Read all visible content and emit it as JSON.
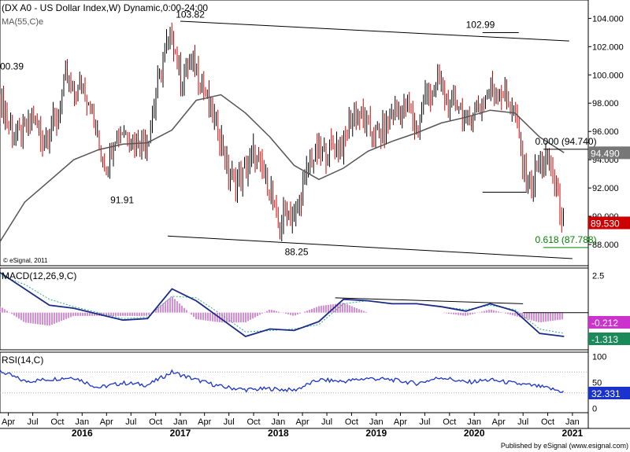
{
  "chart_data": {
    "type": "line",
    "title": "(DX A0 - US Dollar Index,W) Dynamic,0:00-24:00",
    "copyright": "© eSignal, 2011",
    "footer": "Published by eSignal (www.esignal.com)",
    "x_ticks_top": [
      "Apr",
      "Jul",
      "Oct",
      "Jan",
      "Apr",
      "Jul",
      "Oct",
      "Jan",
      "Apr",
      "Jul",
      "Oct",
      "Jan",
      "Apr",
      "Jul",
      "Oct",
      "Jan",
      "Apr",
      "Jul",
      "Oct",
      "Jan",
      "Apr",
      "Jul",
      "Oct",
      "Jan"
    ],
    "x_years": [
      "2016",
      "2017",
      "2018",
      "2019",
      "2020",
      "2021"
    ],
    "panels": [
      {
        "name": "price",
        "ylim": [
          86.5,
          105.3
        ],
        "yticks": [
          88,
          90,
          92,
          94,
          96,
          98,
          100,
          102,
          104
        ],
        "ytick_labels": [
          "88.000",
          "90.000",
          "92.000",
          "94.000",
          "96.000",
          "98.000",
          "100.000",
          "102.000",
          "104.000"
        ],
        "current_value": "89.530",
        "ma_value": "94.490",
        "series": [
          {
            "name": "DX A0",
            "style": "ohlc",
            "points": [
              [
                "2015-03-01",
                98.5
              ],
              [
                "2015-04-01",
                96.5
              ],
              [
                "2015-05-01",
                95.6
              ],
              [
                "2015-06-01",
                95.8
              ],
              [
                "2015-07-01",
                97.3
              ],
              [
                "2015-08-01",
                95.5
              ],
              [
                "2015-09-01",
                96.2
              ],
              [
                "2015-10-01",
                96.8
              ],
              [
                "2015-11-01",
                99.8
              ],
              [
                "2015-12-01",
                98.6
              ],
              [
                "2016-01-01",
                99.2
              ],
              [
                "2016-02-01",
                97.9
              ],
              [
                "2016-03-01",
                95.2
              ],
              [
                "2016-04-01",
                93.4
              ],
              [
                "2016-05-01",
                95.8
              ],
              [
                "2016-06-01",
                96.1
              ],
              [
                "2016-07-01",
                95.6
              ],
              [
                "2016-08-01",
                95.4
              ],
              [
                "2016-09-01",
                95.4
              ],
              [
                "2016-10-01",
                98.4
              ],
              [
                "2016-11-01",
                101.5
              ],
              [
                "2016-12-01",
                102.9
              ],
              [
                "2017-01-01",
                99.5
              ],
              [
                "2017-02-01",
                101.0
              ],
              [
                "2017-03-01",
                100.3
              ],
              [
                "2017-04-01",
                99.0
              ],
              [
                "2017-05-01",
                97.0
              ],
              [
                "2017-06-01",
                95.6
              ],
              [
                "2017-07-01",
                92.8
              ],
              [
                "2017-08-01",
                92.5
              ],
              [
                "2017-09-01",
                93.1
              ],
              [
                "2017-10-01",
                94.5
              ],
              [
                "2017-11-01",
                93.0
              ],
              [
                "2017-12-01",
                92.1
              ],
              [
                "2018-01-01",
                89.1
              ],
              [
                "2018-02-01",
                90.6
              ],
              [
                "2018-03-01",
                89.8
              ],
              [
                "2018-04-01",
                91.8
              ],
              [
                "2018-05-01",
                94.0
              ],
              [
                "2018-06-01",
                94.5
              ],
              [
                "2018-07-01",
                94.5
              ],
              [
                "2018-08-01",
                95.1
              ],
              [
                "2018-09-01",
                95.1
              ],
              [
                "2018-10-01",
                97.1
              ],
              [
                "2018-11-01",
                97.2
              ],
              [
                "2018-12-01",
                96.2
              ],
              [
                "2019-01-01",
                95.6
              ],
              [
                "2019-02-01",
                96.2
              ],
              [
                "2019-03-01",
                97.3
              ],
              [
                "2019-04-01",
                97.5
              ],
              [
                "2019-05-01",
                97.7
              ],
              [
                "2019-06-01",
                96.1
              ],
              [
                "2019-07-01",
                98.5
              ],
              [
                "2019-08-01",
                98.9
              ],
              [
                "2019-09-01",
                99.4
              ],
              [
                "2019-10-01",
                97.4
              ],
              [
                "2019-11-01",
                98.3
              ],
              [
                "2019-12-01",
                96.4
              ],
              [
                "2020-01-01",
                97.4
              ],
              [
                "2020-02-01",
                98.1
              ],
              [
                "2020-03-01",
                99.0
              ],
              [
                "2020-04-01",
                99.0
              ],
              [
                "2020-05-01",
                98.3
              ],
              [
                "2020-06-01",
                97.4
              ],
              [
                "2020-07-01",
                93.4
              ],
              [
                "2020-08-01",
                92.1
              ],
              [
                "2020-09-01",
                93.9
              ],
              [
                "2020-10-01",
                94.0
              ],
              [
                "2020-11-01",
                91.9
              ],
              [
                "2020-12-01",
                89.5
              ]
            ]
          },
          {
            "name": "MA(55,C)e",
            "points": [
              [
                "2015-03-01",
                88.2
              ],
              [
                "2015-06-01",
                91.0
              ],
              [
                "2015-09-01",
                92.5
              ],
              [
                "2015-12-01",
                94.0
              ],
              [
                "2016-03-01",
                94.7
              ],
              [
                "2016-06-01",
                95.1
              ],
              [
                "2016-09-01",
                95.2
              ],
              [
                "2016-12-01",
                96.1
              ],
              [
                "2017-03-01",
                98.2
              ],
              [
                "2017-06-01",
                98.6
              ],
              [
                "2017-09-01",
                97.3
              ],
              [
                "2017-12-01",
                95.6
              ],
              [
                "2018-03-01",
                93.6
              ],
              [
                "2018-06-01",
                92.6
              ],
              [
                "2018-09-01",
                93.4
              ],
              [
                "2018-12-01",
                94.6
              ],
              [
                "2019-03-01",
                95.3
              ],
              [
                "2019-06-01",
                95.9
              ],
              [
                "2019-09-01",
                96.6
              ],
              [
                "2019-12-01",
                97.0
              ],
              [
                "2020-03-01",
                97.5
              ],
              [
                "2020-06-01",
                97.3
              ],
              [
                "2020-09-01",
                95.6
              ],
              [
                "2020-12-01",
                94.5
              ]
            ]
          }
        ],
        "trendlines": [
          {
            "name": "upper-channel",
            "points": [
              [
                "2017-01-01",
                103.8
              ],
              [
                "2020-12-20",
                102.4
              ]
            ]
          },
          {
            "name": "upper-channel-short",
            "points": [
              [
                "2020-02-01",
                102.99
              ],
              [
                "2020-06-15",
                102.99
              ]
            ]
          },
          {
            "name": "lower-channel",
            "points": [
              [
                "2016-11-15",
                88.6
              ],
              [
                "2021-01-01",
                87.0
              ]
            ]
          },
          {
            "name": "support-line",
            "points": [
              [
                "2020-02-01",
                91.7
              ],
              [
                "2020-07-15",
                91.7
              ]
            ]
          },
          {
            "name": "fib-0",
            "points": [
              [
                "2020-09-15",
                94.74
              ],
              [
                "2021-02-28",
                94.74
              ]
            ]
          },
          {
            "name": "fib-618",
            "points": [
              [
                "2020-09-15",
                87.788
              ],
              [
                "2021-02-28",
                87.788
              ]
            ]
          }
        ],
        "annotations": [
          {
            "text": "103.82",
            "x": "2016-12-15",
            "y": 103.82
          },
          {
            "text": "102.99",
            "x": "2019-12-01",
            "y": 102.99
          },
          {
            "text": "0.000 (94.740)",
            "x": "2020-08-15",
            "y": 94.74
          },
          {
            "text": "91.91",
            "x": "2016-04-15",
            "y": 91.91
          },
          {
            "text": "88.25",
            "x": "2018-01-25",
            "y": 88.25
          },
          {
            "text": "0.618 (87.788)",
            "x": "2020-08-15",
            "y": 87.788
          },
          {
            "text": "00.39",
            "x": "2015-03-01",
            "y": 100.39
          }
        ]
      },
      {
        "name": "MACD(12,26,9,C)",
        "ylim": [
          -2.5,
          3.0
        ],
        "yticks": [
          2.5
        ],
        "ytick_labels": [
          "2.5"
        ],
        "macd_value": "-0.212",
        "signal_value": "-1.313",
        "series": [
          {
            "name": "macd",
            "points": [
              [
                "2015-03-01",
                2.7
              ],
              [
                "2015-06-01",
                1.6
              ],
              [
                "2015-09-01",
                0.5
              ],
              [
                "2015-12-01",
                0.3
              ],
              [
                "2016-03-01",
                -0.1
              ],
              [
                "2016-06-01",
                -0.5
              ],
              [
                "2016-09-01",
                -0.4
              ],
              [
                "2016-12-01",
                1.6
              ],
              [
                "2017-03-01",
                0.8
              ],
              [
                "2017-06-01",
                -0.4
              ],
              [
                "2017-09-01",
                -1.6
              ],
              [
                "2017-12-01",
                -1.1
              ],
              [
                "2018-03-01",
                -1.2
              ],
              [
                "2018-06-01",
                -0.6
              ],
              [
                "2018-09-01",
                0.9
              ],
              [
                "2018-12-01",
                0.8
              ],
              [
                "2019-03-01",
                0.6
              ],
              [
                "2019-06-01",
                0.6
              ],
              [
                "2019-09-01",
                0.4
              ],
              [
                "2019-12-01",
                0.1
              ],
              [
                "2020-03-01",
                0.6
              ],
              [
                "2020-06-01",
                0.1
              ],
              [
                "2020-09-01",
                -1.4
              ],
              [
                "2020-12-01",
                -1.6
              ]
            ]
          },
          {
            "name": "signal",
            "points": [
              [
                "2015-03-01",
                2.5
              ],
              [
                "2015-06-01",
                1.9
              ],
              [
                "2015-09-01",
                0.9
              ],
              [
                "2015-12-01",
                0.4
              ],
              [
                "2016-03-01",
                0.0
              ],
              [
                "2016-06-01",
                -0.4
              ],
              [
                "2016-09-01",
                -0.3
              ],
              [
                "2016-12-01",
                1.1
              ],
              [
                "2017-03-01",
                1.0
              ],
              [
                "2017-06-01",
                -0.1
              ],
              [
                "2017-09-01",
                -1.3
              ],
              [
                "2017-12-01",
                -1.2
              ],
              [
                "2018-03-01",
                -1.1
              ],
              [
                "2018-06-01",
                -0.8
              ],
              [
                "2018-09-01",
                0.6
              ],
              [
                "2018-12-01",
                0.8
              ],
              [
                "2019-03-01",
                0.6
              ],
              [
                "2019-06-01",
                0.6
              ],
              [
                "2019-09-01",
                0.4
              ],
              [
                "2019-12-01",
                0.2
              ],
              [
                "2020-03-01",
                0.5
              ],
              [
                "2020-06-01",
                0.2
              ],
              [
                "2020-09-01",
                -1.1
              ],
              [
                "2020-12-01",
                -1.4
              ]
            ]
          }
        ],
        "trendlines": [
          {
            "name": "macd-trendline",
            "points": [
              [
                "2018-08-01",
                1.0
              ],
              [
                "2020-07-01",
                0.6
              ]
            ]
          },
          {
            "name": "macd-zero-line",
            "points": [
              [
                "2020-07-01",
                0.0
              ],
              [
                "2021-02-28",
                0.0
              ]
            ]
          }
        ]
      },
      {
        "name": "RSI(14,C)",
        "ylim": [
          -8,
          108
        ],
        "yticks": [
          0,
          50,
          100
        ],
        "ytick_labels": [
          "0",
          "50",
          "100"
        ],
        "levels": [
          30,
          70
        ],
        "rsi_value": "32.331",
        "series": [
          {
            "name": "rsi",
            "points": [
              [
                "2015-03-01",
                72
              ],
              [
                "2015-06-01",
                52
              ],
              [
                "2015-09-01",
                56
              ],
              [
                "2015-12-01",
                60
              ],
              [
                "2016-03-01",
                40
              ],
              [
                "2016-06-01",
                49
              ],
              [
                "2016-09-01",
                45
              ],
              [
                "2016-12-01",
                70
              ],
              [
                "2017-03-01",
                55
              ],
              [
                "2017-06-01",
                42
              ],
              [
                "2017-09-01",
                36
              ],
              [
                "2017-12-01",
                38
              ],
              [
                "2018-03-01",
                35
              ],
              [
                "2018-06-01",
                55
              ],
              [
                "2018-09-01",
                52
              ],
              [
                "2018-12-01",
                58
              ],
              [
                "2019-03-01",
                55
              ],
              [
                "2019-06-01",
                48
              ],
              [
                "2019-09-01",
                60
              ],
              [
                "2019-12-01",
                50
              ],
              [
                "2020-03-01",
                55
              ],
              [
                "2020-06-01",
                48
              ],
              [
                "2020-09-01",
                42
              ],
              [
                "2020-12-01",
                32
              ]
            ]
          }
        ]
      }
    ]
  }
}
